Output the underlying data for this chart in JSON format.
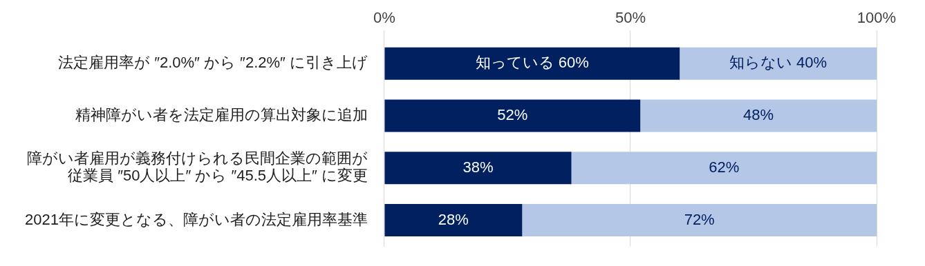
{
  "chart_data": {
    "type": "bar",
    "orientation": "horizontal",
    "stacked": true,
    "grid": "x",
    "categories": [
      "法定雇用率が ″2.0%″ から ″2.2%″ に引き上げ",
      "精神障がい者を法定雇用の算出対象に追加",
      "障がい者雇用が義務付けられる民間企業の範囲が従業員 ″50人以上″ から ″45.5人以上″ に変更",
      "2021年に変更となる、障がい者の法定雇用率基準"
    ],
    "xlim": [
      0,
      100
    ],
    "xticks": [
      {
        "value": 0,
        "label": "0%"
      },
      {
        "value": 50,
        "label": "50%"
      },
      {
        "value": 100,
        "label": "100%"
      }
    ],
    "series": [
      {
        "color": "#002060",
        "values": [
          60,
          52,
          38,
          28
        ],
        "value_labels": [
          "知っている 60%",
          "52%",
          "38%",
          "28%"
        ]
      },
      {
        "color": "#b4c7e7",
        "values": [
          40,
          48,
          62,
          72
        ],
        "value_labels": [
          "知らない 40%",
          "48%",
          "62%",
          "72%"
        ]
      }
    ]
  }
}
